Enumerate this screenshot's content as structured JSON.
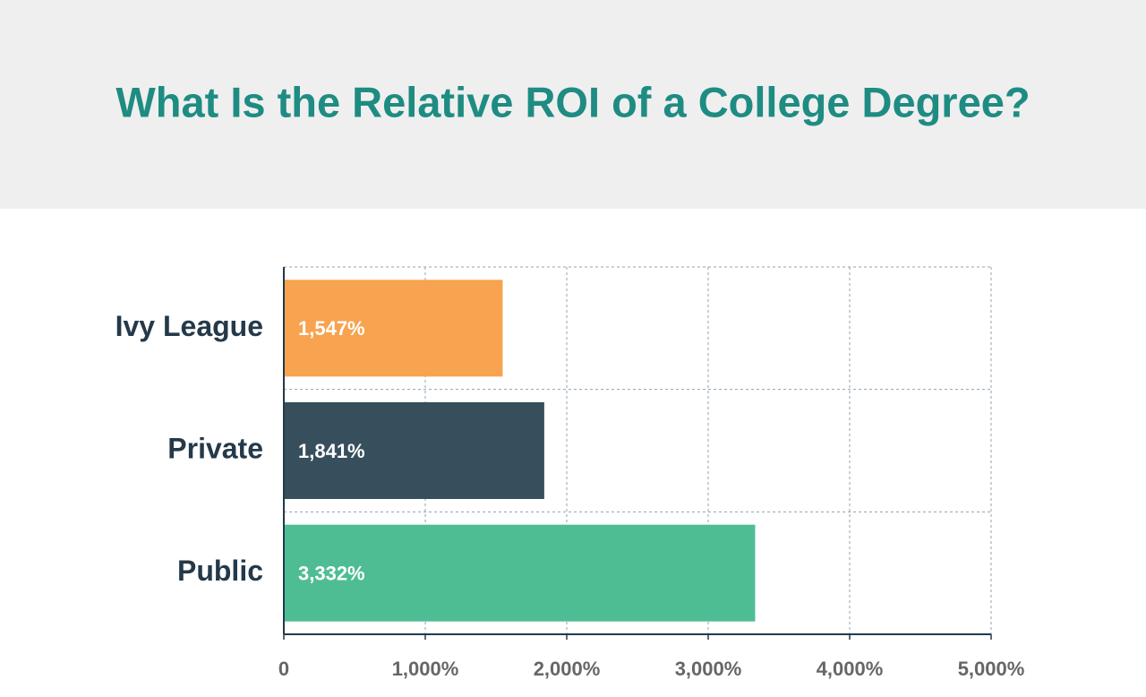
{
  "chart_data": {
    "type": "bar",
    "orientation": "horizontal",
    "title": "What Is the Relative ROI of a College Degree?",
    "categories": [
      "Ivy League",
      "Private",
      "Public"
    ],
    "values": [
      1547,
      1841,
      3332
    ],
    "value_labels": [
      "1,547%",
      "1,841%",
      "3,332%"
    ],
    "colors": [
      "#f7a350",
      "#374f5d",
      "#4fbd94"
    ],
    "xlim": [
      0,
      5000
    ],
    "xticks": [
      0,
      {
        "value": 1000,
        "label": "1,000%"
      },
      {
        "value": 2000,
        "label": "2,000%"
      },
      {
        "value": 3000,
        "label": "3,000%"
      },
      {
        "value": 4000,
        "label": "4,000%"
      },
      {
        "value": 5000,
        "label": "5,000%"
      }
    ],
    "grid": true
  }
}
